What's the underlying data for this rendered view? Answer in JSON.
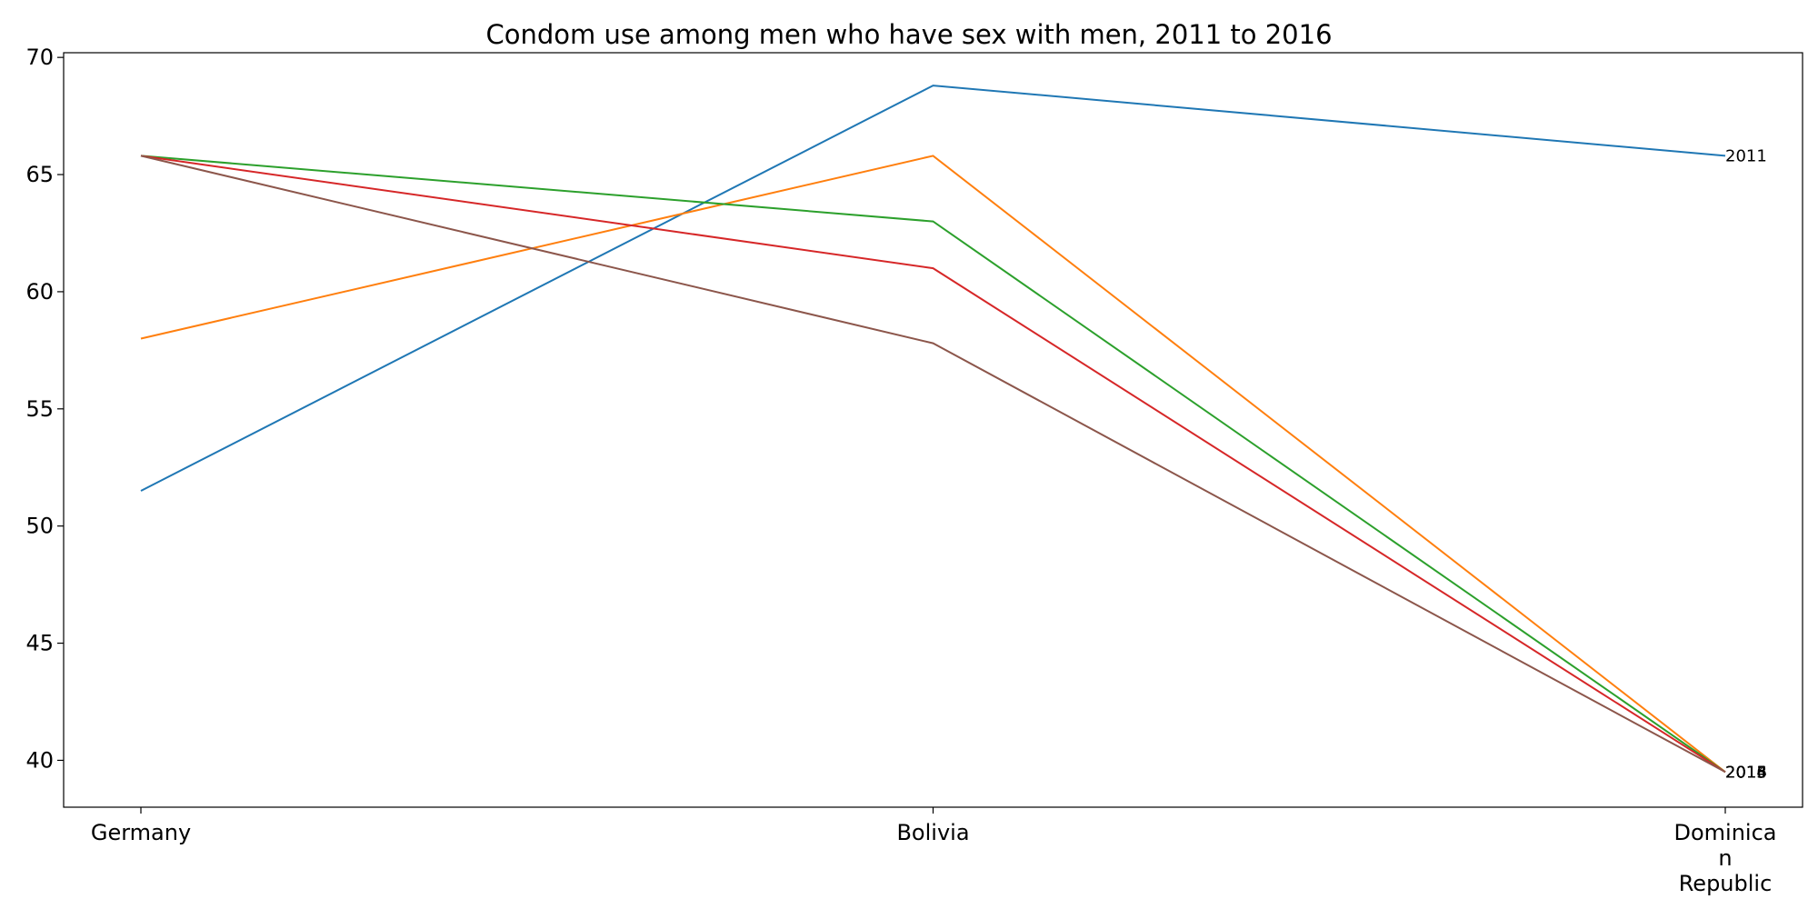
{
  "chart_data": {
    "type": "line",
    "title": "Condom use among men who have sex with men, 2011 to 2016",
    "xlabel": "",
    "ylabel": "",
    "categories": [
      "Germany",
      "Bolivia",
      "Dominican Republic"
    ],
    "category_display_lines": [
      [
        "Germany"
      ],
      [
        "Bolivia"
      ],
      [
        "Dominica",
        "n",
        "Republic"
      ]
    ],
    "ylim": [
      38,
      70.2
    ],
    "yticks": [
      40,
      45,
      50,
      55,
      60,
      65,
      70
    ],
    "grid": false,
    "legend": "none",
    "series": [
      {
        "name": "2011",
        "color": "#1f77b4",
        "values": [
          51.5,
          68.8,
          65.8
        ]
      },
      {
        "name": "",
        "color": "#ff7f0e",
        "values": [
          58.0,
          65.8,
          39.5
        ]
      },
      {
        "name": "",
        "color": "#2ca02c",
        "values": [
          65.8,
          63.0,
          39.5
        ]
      },
      {
        "name": "",
        "color": "#d62728",
        "values": [
          65.8,
          61.0,
          39.5
        ]
      },
      {
        "name": "",
        "color": "#8c564b",
        "values": [
          65.8,
          57.8,
          39.5
        ]
      }
    ],
    "end_labels": [
      {
        "text": "2011",
        "y": 65.8
      },
      {
        "text": "2016",
        "y": 39.5
      },
      {
        "text": "2015",
        "y": 39.5
      },
      {
        "text": "2014",
        "y": 39.5
      },
      {
        "text": "2013",
        "y": 39.5
      }
    ]
  }
}
